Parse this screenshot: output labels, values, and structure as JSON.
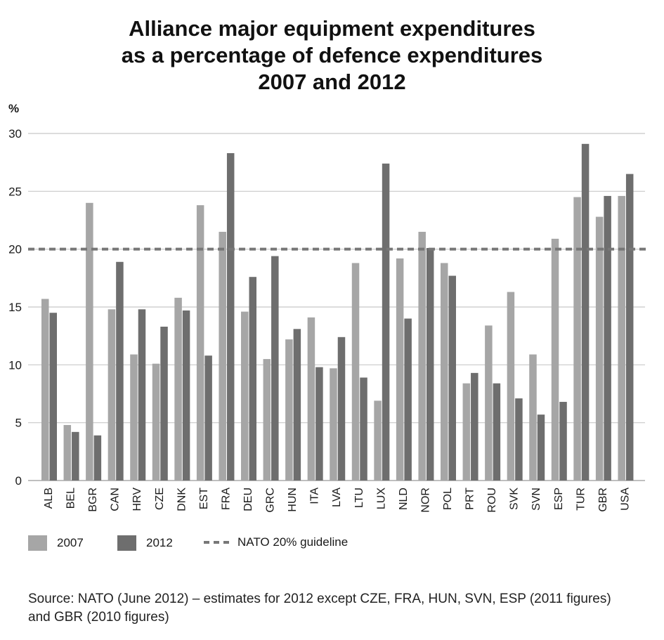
{
  "title_lines": [
    "Alliance major equipment expenditures",
    "as a percentage of defence expenditures",
    "2007 and 2012"
  ],
  "source": "Source: NATO (June 2012) – estimates for 2012 except CZE, FRA, HUN, SVN, ESP (2011 figures) and GBR (2010 figures)",
  "legend": {
    "series_2007": "2007",
    "series_2012": "2012",
    "guideline": "NATO 20% guideline"
  },
  "colors": {
    "series_2007": "#a6a6a6",
    "series_2012": "#6e6e6e",
    "guideline": "#777777",
    "grid": "#c8c8c8"
  },
  "chart_data": {
    "type": "bar",
    "ylabel": "%",
    "ylim": [
      0,
      30
    ],
    "yticks": [
      0,
      5,
      10,
      15,
      20,
      25,
      30
    ],
    "grid": true,
    "legend_position": "bottom",
    "categories": [
      "ALB",
      "BEL",
      "BGR",
      "CAN",
      "HRV",
      "CZE",
      "DNK",
      "EST",
      "FRA",
      "DEU",
      "GRC",
      "HUN",
      "ITA",
      "LVA",
      "LTU",
      "LUX",
      "NLD",
      "NOR",
      "POL",
      "PRT",
      "ROU",
      "SVK",
      "SVN",
      "ESP",
      "TUR",
      "GBR",
      "USA"
    ],
    "series": [
      {
        "name": "2007",
        "values": [
          15.7,
          4.8,
          24.0,
          14.8,
          10.9,
          10.1,
          15.8,
          23.8,
          21.5,
          14.6,
          10.5,
          12.2,
          14.1,
          9.7,
          18.8,
          6.9,
          19.2,
          21.5,
          18.8,
          8.4,
          13.4,
          16.3,
          10.9,
          20.9,
          24.5,
          22.8,
          24.6
        ]
      },
      {
        "name": "2012",
        "values": [
          14.5,
          4.2,
          3.9,
          18.9,
          14.8,
          13.3,
          14.7,
          10.8,
          28.3,
          17.6,
          19.4,
          13.1,
          9.8,
          12.4,
          8.9,
          27.4,
          14.0,
          20.1,
          17.7,
          9.3,
          8.4,
          7.1,
          5.7,
          6.8,
          29.1,
          24.6,
          26.5
        ]
      }
    ],
    "reference_line": {
      "label": "NATO 20% guideline",
      "value": 20
    }
  }
}
